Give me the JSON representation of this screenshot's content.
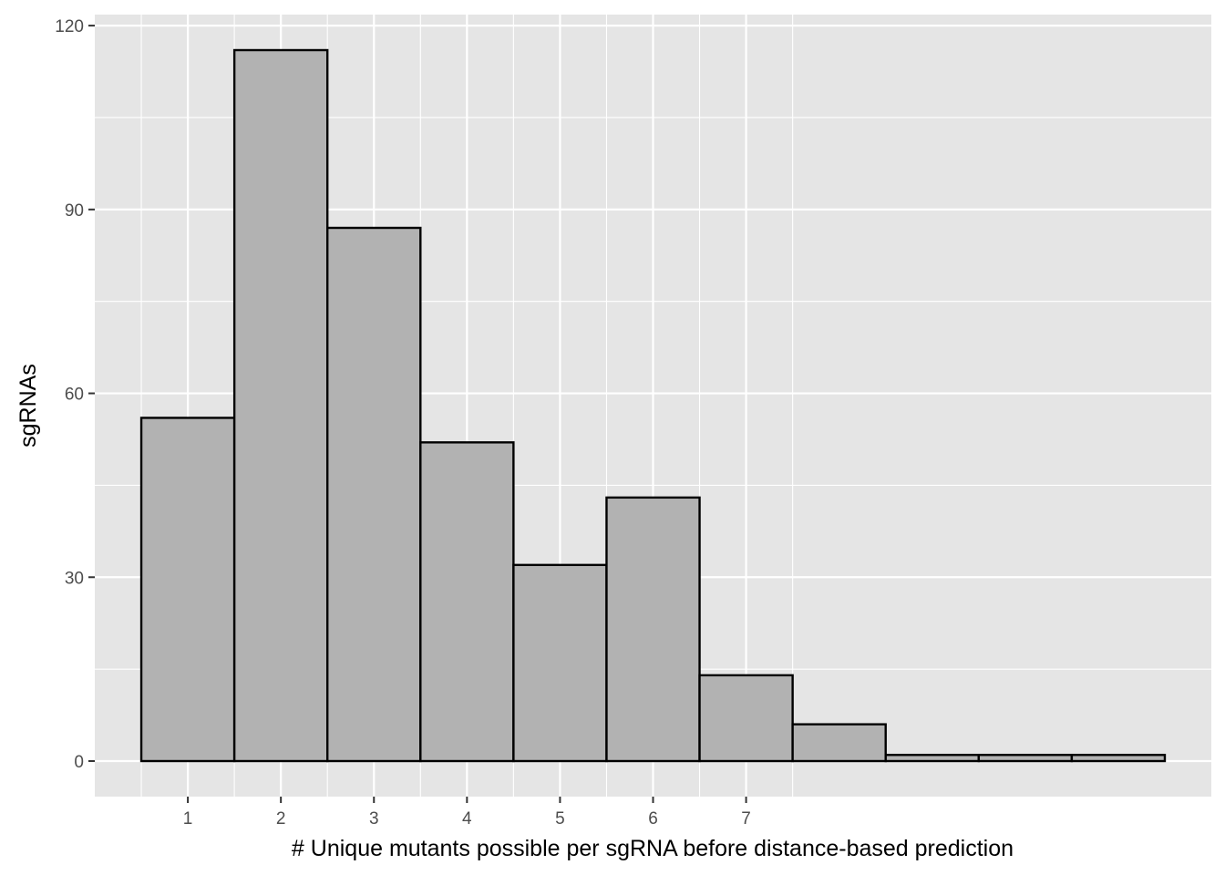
{
  "chart_data": {
    "type": "bar",
    "title": "",
    "xlabel": "# Unique mutants possible per sgRNA before distance-based prediction",
    "ylabel": "sgRNAs",
    "x_ticks": [
      1,
      2,
      3,
      4,
      5,
      6,
      7
    ],
    "y_ticks": [
      0,
      30,
      60,
      90,
      120
    ],
    "x": [
      1,
      2,
      3,
      4,
      5,
      6,
      7,
      8,
      9,
      10,
      11
    ],
    "values": [
      56,
      116,
      87,
      52,
      32,
      43,
      14,
      6,
      1,
      1,
      1
    ],
    "xlim": [
      0,
      12
    ],
    "ylim": [
      -5.8,
      121.8
    ],
    "grid": true,
    "legend": "none",
    "colors": {
      "panel": "#e5e5e5",
      "grid": "#ffffff",
      "bar_fill": "#b2b2b2",
      "bar_outline": "#000000",
      "tick_text": "#4d4d4d",
      "axis_title": "#000000"
    }
  }
}
